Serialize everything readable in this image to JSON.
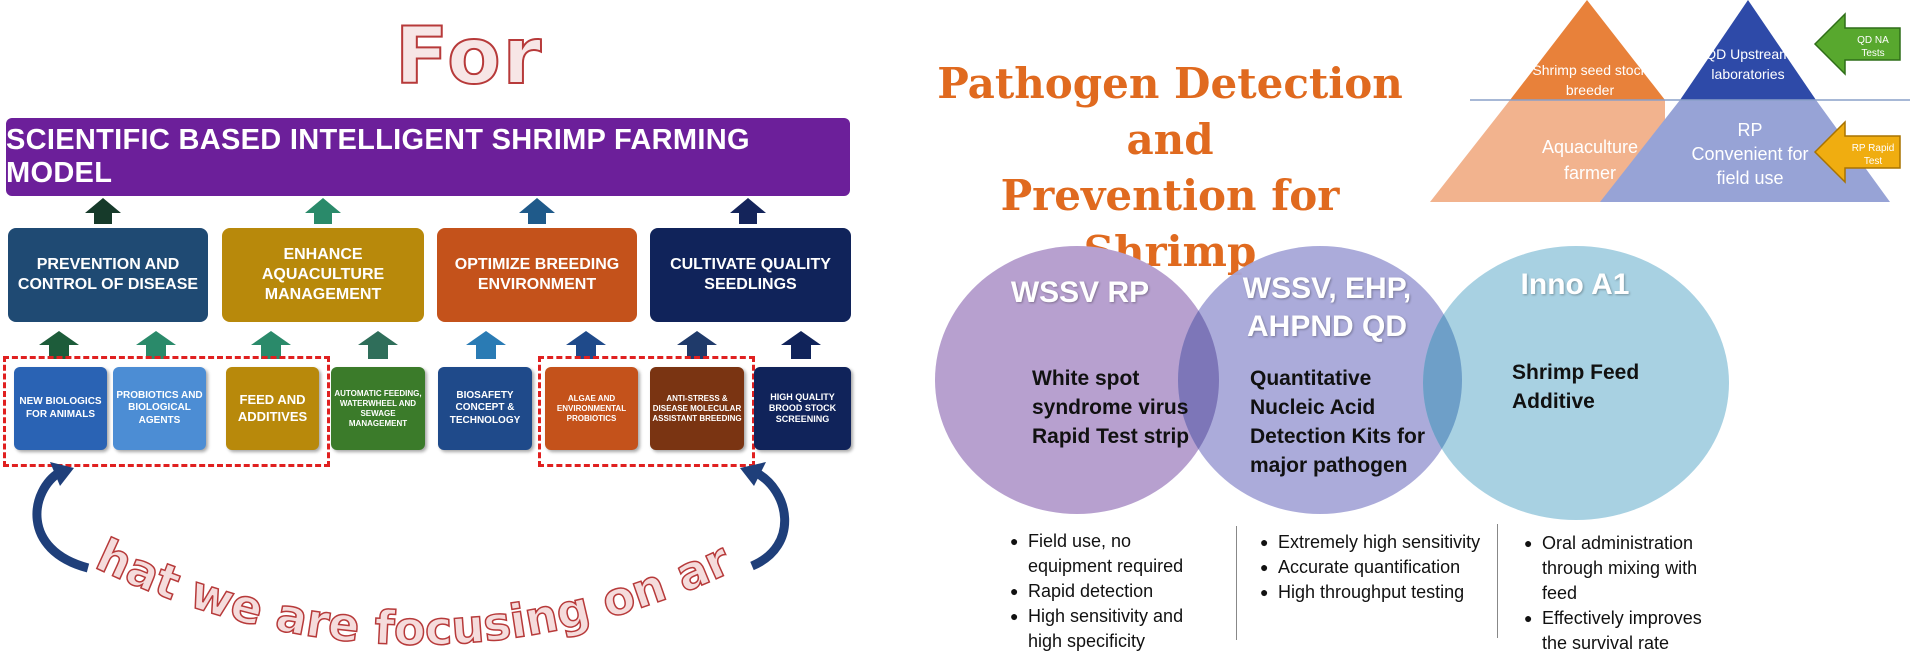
{
  "left": {
    "for_title": "For",
    "banner": "SCIENTIFIC BASED INTELLIGENT SHRIMP FARMING MODEL",
    "categories": [
      {
        "label": "PREVENTION AND CONTROL OF DISEASE",
        "color": "#1f4a73"
      },
      {
        "label": "ENHANCE AQUACULTURE MANAGEMENT",
        "color": "#b8890b"
      },
      {
        "label": "OPTIMIZE  BREEDING ENVIRONMENT",
        "color": "#c4521b"
      },
      {
        "label": "CULTIVATE QUALITY SEEDLINGS",
        "color": "#10235a"
      }
    ],
    "subitems": [
      {
        "label": "NEW BIOLOGICS FOR ANIMALS",
        "color": "#2a63b4"
      },
      {
        "label": "PROBIOTICS AND BIOLOGICAL AGENTS",
        "color": "#4c8dd4"
      },
      {
        "label": "FEED AND ADDITIVES",
        "color": "#b8890b"
      },
      {
        "label": "AUTOMATIC FEEDING, WATERWHEEL AND SEWAGE MANAGEMENT",
        "color": "#3b7b2a"
      },
      {
        "label": "BIOSAFETY CONCEPT & TECHNOLOGY",
        "color": "#1f4a8a"
      },
      {
        "label": "ALGAE AND ENVIRONMENTAL PROBIOTICS",
        "color": "#c4521b"
      },
      {
        "label": "ANTI-STRESS & DISEASE MOLECULAR ASSISTANT BREEDING",
        "color": "#7a3412"
      },
      {
        "label": "HIGH QUALITY BROOD STOCK SCREENING",
        "color": "#10235a"
      }
    ],
    "focus_text": "What we are focusing on are :"
  },
  "right": {
    "title_line1": "Pathogen Detection and",
    "title_line2": "Prevention for Shrimp",
    "pyramid": {
      "shrimp_seed": "Shrimp seed stock breeder",
      "qd_upstream": "QD Upstream laboratories",
      "aquaculture": "Aquaculture farmer",
      "rp": "RP Convenient for field use",
      "qd_arrow": "QD NA Tests",
      "rp_arrow": "RP Rapid Test"
    },
    "circles": [
      {
        "title": "WSSV RP",
        "body": "White spot syndrome virus Rapid Test strip",
        "color": "#b7a0cf"
      },
      {
        "title": "WSSV, EHP, AHPND QD",
        "body": "Quantitative Nucleic Acid Detection Kits for major pathogen",
        "color": "#a6a6d8"
      },
      {
        "title": "Inno A1",
        "body": "Shrimp Feed Additive",
        "color": "#a1cde0"
      }
    ],
    "bullets": [
      [
        "Field use, no equipment required",
        "Rapid detection",
        "High sensitivity and high specificity"
      ],
      [
        "Extremely high sensitivity",
        "Accurate quantification",
        "High throughput testing"
      ],
      [
        "Oral administration through mixing with feed",
        "Effectively improves the survival rate"
      ]
    ]
  }
}
